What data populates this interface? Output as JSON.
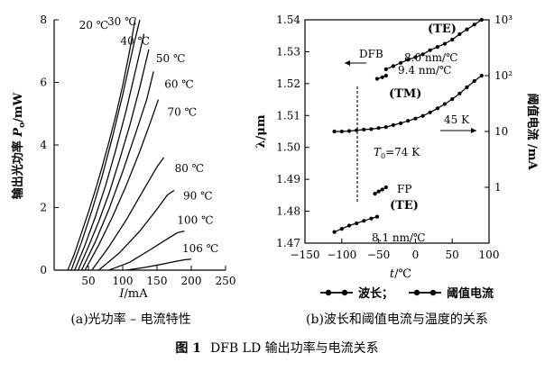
{
  "chart_data": [
    {
      "id": "a",
      "type": "line",
      "ylabel": "输出光功率 P_o/mW",
      "ylabel_main": "输出光功率 ",
      "ylabel_var": "P",
      "ylabel_sub": "o",
      "ylabel_unit": "/mW",
      "xlabel": "I/mA",
      "xlabel_var": "I",
      "xlabel_unit": "/mA",
      "xlim": [
        0,
        250
      ],
      "ylim": [
        0,
        8
      ],
      "xticks": [
        50,
        100,
        150,
        200,
        250
      ],
      "yticks": [
        0,
        2,
        4,
        6,
        8
      ],
      "series": [
        {
          "name": "20 ℃",
          "x": [
            20,
            30,
            40,
            50,
            60,
            70,
            80,
            90,
            100,
            110,
            118
          ],
          "y": [
            0,
            0.55,
            1.2,
            1.85,
            2.55,
            3.3,
            4.1,
            4.95,
            5.9,
            7.0,
            8.0
          ]
        },
        {
          "name": "30 ℃",
          "x": [
            25,
            40,
            55,
            70,
            85,
            100,
            115,
            125
          ],
          "y": [
            0,
            0.9,
            1.9,
            3.0,
            4.25,
            5.6,
            7.1,
            8.0
          ]
        },
        {
          "name": "40 ℃",
          "x": [
            30,
            45,
            60,
            75,
            90,
            105,
            120,
            131
          ],
          "y": [
            0,
            0.8,
            1.7,
            2.7,
            3.85,
            5.1,
            6.5,
            7.55
          ]
        },
        {
          "name": "50 ℃",
          "x": [
            35,
            50,
            65,
            80,
            95,
            110,
            125,
            138
          ],
          "y": [
            0,
            0.75,
            1.55,
            2.45,
            3.5,
            4.6,
            5.85,
            7.05
          ]
        },
        {
          "name": "60 ℃",
          "x": [
            40,
            60,
            80,
            100,
            120,
            135,
            145
          ],
          "y": [
            0,
            0.9,
            1.95,
            3.15,
            4.45,
            5.45,
            6.35
          ]
        },
        {
          "name": "70 ℃",
          "x": [
            45,
            65,
            85,
            105,
            125,
            140,
            152
          ],
          "y": [
            0,
            0.8,
            1.7,
            2.7,
            3.8,
            4.7,
            5.45
          ]
        },
        {
          "name": "80 ℃",
          "x": [
            55,
            80,
            105,
            130,
            150,
            160
          ],
          "y": [
            0,
            0.75,
            1.6,
            2.55,
            3.3,
            3.6
          ]
        },
        {
          "name": "90 ℃",
          "x": [
            65,
            95,
            125,
            150,
            165,
            175
          ],
          "y": [
            0,
            0.55,
            1.25,
            1.95,
            2.4,
            2.55
          ]
        },
        {
          "name": "100 ℃",
          "x": [
            80,
            110,
            140,
            165,
            180,
            190
          ],
          "y": [
            0,
            0.25,
            0.65,
            1.0,
            1.2,
            1.25
          ]
        },
        {
          "name": "106 ℃",
          "x": [
            105,
            130,
            155,
            175,
            190,
            200
          ],
          "y": [
            0,
            0.08,
            0.18,
            0.27,
            0.33,
            0.35
          ]
        }
      ]
    },
    {
      "id": "b",
      "type": "line",
      "ylabel": "λ/μm",
      "ylabel_right": "阈值电流 /mA",
      "xlabel": "t/℃",
      "xlabel_var": "t",
      "xlabel_unit": "/℃",
      "xlim": [
        -150,
        100
      ],
      "ylim": [
        1.47,
        1.54
      ],
      "right_axis_log": true,
      "right_axis_range_mA": [
        0.1,
        1000
      ],
      "xticks": [
        "−150",
        "−100",
        "−50",
        "0",
        "50",
        "100"
      ],
      "yticks": [
        "1.47",
        "1.48",
        "1.49",
        "1.50",
        "1.51",
        "1.52",
        "1.53",
        "1.54"
      ],
      "right_ticks": [
        "1",
        "10",
        "10²",
        "10³"
      ],
      "series": [
        {
          "name": "波长",
          "segment": "FP(TE)",
          "x": [
            -110,
            -100,
            -90,
            -80,
            -70,
            -60,
            -52
          ],
          "y": [
            1.4735,
            1.4745,
            1.4755,
            1.4762,
            1.477,
            1.4777,
            1.4783
          ]
        },
        {
          "name": "波长",
          "segment": "FP(TE) upper",
          "x": [
            -55,
            -50,
            -45,
            -40
          ],
          "y": [
            1.4855,
            1.4862,
            1.4868,
            1.4875
          ]
        },
        {
          "name": "波长",
          "segment": "TM",
          "x": [
            -52,
            -45,
            -40
          ],
          "y": [
            1.5215,
            1.522,
            1.5225
          ]
        },
        {
          "name": "波长",
          "segment": "TE",
          "x": [
            -40,
            -30,
            -20,
            -10,
            0,
            10,
            20,
            30,
            40,
            50,
            60,
            70,
            80,
            90
          ],
          "y": [
            1.5245,
            1.5255,
            1.5265,
            1.5275,
            1.5283,
            1.5292,
            1.5305,
            1.5315,
            1.5325,
            1.5338,
            1.5355,
            1.537,
            1.5385,
            1.54
          ]
        },
        {
          "name": "阈值电流",
          "x": [
            -110,
            -100,
            -90,
            -80,
            -70,
            -60,
            -50,
            -40,
            -30,
            -20,
            -10,
            0,
            10,
            20,
            30,
            40,
            50,
            60,
            70,
            80,
            90
          ],
          "y_mA": [
            10,
            10,
            10.2,
            10.5,
            10.8,
            11,
            11.5,
            12,
            13,
            14,
            15.5,
            17,
            19,
            22,
            26,
            31,
            38,
            48,
            62,
            80,
            100
          ]
        }
      ],
      "annotations": [
        "(TE)",
        "DFB",
        "8.0 nm/℃",
        "9.4 nm/℃",
        "(TM)",
        "45 K",
        "T_0=74 K",
        "FP",
        "(TE)",
        "8.1 nm/℃"
      ],
      "ann": {
        "te_top": "(TE)",
        "dfb": "DFB",
        "rate1": "8.0 nm/℃",
        "rate2": "9.4 nm/℃",
        "tm": "(TM)",
        "k45": "45 K",
        "t0_var": "T",
        "t0_sub": "0",
        "t0_rest": "=74 K",
        "fp": "FP",
        "te_bottom": "(TE)",
        "rate3": "8.1 nm/℃"
      },
      "legend": [
        {
          "label": "波长；",
          "marker": "filled-circle-line"
        },
        {
          "label": "阈值电流",
          "marker": "filled-circle-line"
        }
      ]
    }
  ],
  "captions": {
    "a": "(a)光功率 – 电流特性",
    "b": "(b)波长和阈值电流与温度的关系"
  },
  "figure": {
    "label": "图 1",
    "title": "DFB LD 输出功率与电流关系"
  }
}
